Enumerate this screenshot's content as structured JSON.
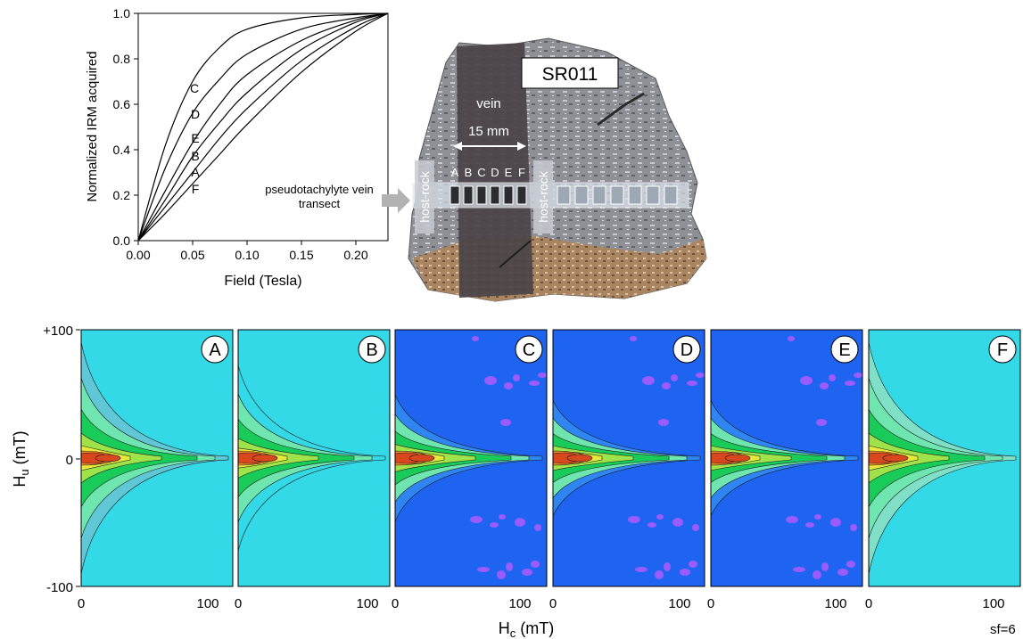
{
  "irm_plot": {
    "ylabel": "Normalized IRM acquired",
    "xlabel": "Field (Tesla)",
    "xticks": [
      "0.00",
      "0.05",
      "0.10",
      "0.15",
      "0.20"
    ],
    "yticks": [
      "0.0",
      "0.2",
      "0.4",
      "0.6",
      "0.8",
      "1.0"
    ],
    "curve_labels": [
      "C",
      "D",
      "E",
      "B",
      "A",
      "F"
    ]
  },
  "chart_data": {
    "type": "line",
    "xlabel": "Field (Tesla)",
    "ylabel": "Normalized IRM acquired",
    "xlim": [
      0,
      0.23
    ],
    "ylim": [
      0,
      1.0
    ],
    "series": [
      {
        "name": "C",
        "x": [
          0,
          0.025,
          0.05,
          0.075,
          0.1,
          0.15,
          0.2,
          0.23
        ],
        "y": [
          0,
          0.42,
          0.7,
          0.85,
          0.93,
          0.98,
          0.995,
          1.0
        ]
      },
      {
        "name": "D",
        "x": [
          0,
          0.025,
          0.05,
          0.075,
          0.1,
          0.15,
          0.2,
          0.23
        ],
        "y": [
          0,
          0.32,
          0.56,
          0.71,
          0.82,
          0.93,
          0.98,
          1.0
        ]
      },
      {
        "name": "E",
        "x": [
          0,
          0.025,
          0.05,
          0.075,
          0.1,
          0.15,
          0.2,
          0.23
        ],
        "y": [
          0,
          0.22,
          0.43,
          0.6,
          0.73,
          0.88,
          0.97,
          1.0
        ]
      },
      {
        "name": "B",
        "x": [
          0,
          0.025,
          0.05,
          0.075,
          0.1,
          0.15,
          0.2,
          0.23
        ],
        "y": [
          0,
          0.18,
          0.37,
          0.52,
          0.65,
          0.84,
          0.96,
          1.0
        ]
      },
      {
        "name": "A",
        "x": [
          0,
          0.025,
          0.05,
          0.075,
          0.1,
          0.15,
          0.2,
          0.23
        ],
        "y": [
          0,
          0.15,
          0.3,
          0.45,
          0.58,
          0.79,
          0.94,
          1.0
        ]
      },
      {
        "name": "F",
        "x": [
          0,
          0.025,
          0.05,
          0.075,
          0.1,
          0.15,
          0.2,
          0.23
        ],
        "y": [
          0,
          0.12,
          0.25,
          0.38,
          0.51,
          0.74,
          0.92,
          1.0
        ]
      }
    ]
  },
  "photo": {
    "sample_id": "SR011",
    "vein_label": "vein",
    "width_label": "15 mm",
    "positions": [
      "A",
      "B",
      "C",
      "D",
      "E",
      "F"
    ],
    "host_rock_label": "host-rock",
    "transect_label_line1": "pseudotachylyte vein",
    "transect_label_line2": "transect"
  },
  "forc": {
    "ylabel_main": "H",
    "ylabel_sub": "u",
    "ylabel_unit": " (mT)",
    "yticks": [
      "+100",
      "0",
      "-100"
    ],
    "xlabel_main": "H",
    "xlabel_sub": "c",
    "xlabel_unit": " (mT)",
    "xticks": [
      "0",
      "100"
    ],
    "panels": [
      "A",
      "B",
      "C",
      "D",
      "E",
      "F"
    ],
    "smoothing": "sf=6"
  },
  "colors": {
    "forc_cyan": "#33d9e6",
    "forc_blue": "#1e64f0",
    "forc_purple": "#9b5cff",
    "forc_green": "#19cc5a",
    "forc_yellow": "#e6ea3a",
    "forc_red": "#d9471e"
  }
}
